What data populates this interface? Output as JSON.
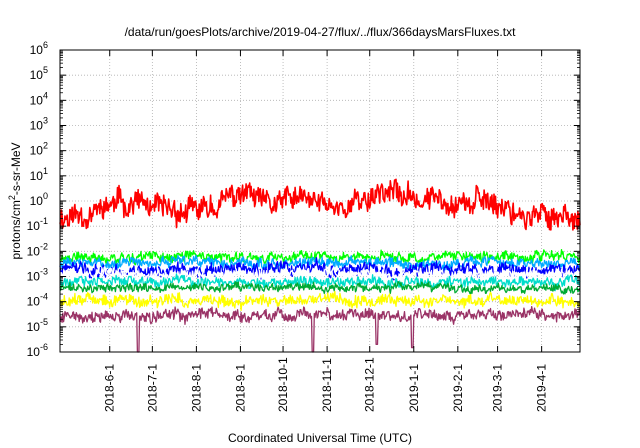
{
  "chart_data": {
    "type": "line",
    "title": "/data/run/goesPlots/archive/2019-04-27/flux/../flux/366daysMarsFluxes.txt",
    "xlabel": "Coordinated Universal Time (UTC)",
    "ylabel_parts": [
      "protons/cm",
      "2",
      "-s-sr-MeV"
    ],
    "yscale": "log",
    "ylim_exp": [
      -6,
      6
    ],
    "yticks": [
      {
        "base": "10",
        "exp": "-6",
        "value": 1e-06
      },
      {
        "base": "10",
        "exp": "-5",
        "value": 1e-05
      },
      {
        "base": "10",
        "exp": "-4",
        "value": 0.0001
      },
      {
        "base": "10",
        "exp": "-3",
        "value": 0.001
      },
      {
        "base": "10",
        "exp": "-2",
        "value": 0.01
      },
      {
        "base": "10",
        "exp": "-1",
        "value": 0.1
      },
      {
        "base": "10",
        "exp": "0",
        "value": 1
      },
      {
        "base": "10",
        "exp": "1",
        "value": 10
      },
      {
        "base": "10",
        "exp": "2",
        "value": 100
      },
      {
        "base": "10",
        "exp": "3",
        "value": 1000
      },
      {
        "base": "10",
        "exp": "4",
        "value": 10000
      },
      {
        "base": "10",
        "exp": "5",
        "value": 100000
      },
      {
        "base": "10",
        "exp": "6",
        "value": 1000000
      }
    ],
    "xlim": [
      "2018-04-27",
      "2019-04-28"
    ],
    "xticks": [
      "2018-6-1",
      "2018-7-1",
      "2018-8-1",
      "2018-9-1",
      "2018-10-1",
      "2018-11-1",
      "2018-12-1",
      "2019-1-1",
      "2019-2-1",
      "2019-3-1",
      "2019-4-1"
    ],
    "grid": true,
    "legend": "none",
    "series": [
      {
        "color": "#ff0000",
        "level": 0.5,
        "spread": 0.35,
        "seed": 11,
        "knots": [
          [
            "2018-04-27",
            0.25
          ],
          [
            "2018-05-20",
            0.35
          ],
          [
            "2018-06-05",
            0.8
          ],
          [
            "2018-06-20",
            1.0
          ],
          [
            "2018-07-01",
            0.4
          ],
          [
            "2018-07-20",
            0.35
          ],
          [
            "2018-08-05",
            0.4
          ],
          [
            "2018-08-20",
            1.0
          ],
          [
            "2018-09-05",
            2.0
          ],
          [
            "2018-09-20",
            0.6
          ],
          [
            "2018-10-10",
            1.2
          ],
          [
            "2018-10-25",
            0.8
          ],
          [
            "2018-11-10",
            0.6
          ],
          [
            "2018-11-25",
            1.0
          ],
          [
            "2018-12-10",
            3.0
          ],
          [
            "2018-12-25",
            1.5
          ],
          [
            "2019-01-10",
            1.0
          ],
          [
            "2019-01-25",
            1.5
          ],
          [
            "2019-02-10",
            0.8
          ],
          [
            "2019-02-25",
            1.0
          ],
          [
            "2019-03-10",
            0.5
          ],
          [
            "2019-03-25",
            0.2
          ],
          [
            "2019-04-10",
            0.3
          ],
          [
            "2019-04-28",
            0.25
          ]
        ]
      },
      {
        "color": "#00ff00",
        "level": 0.006,
        "spread": 0.15,
        "seed": 21
      },
      {
        "color": "#00aaff",
        "level": 0.0035,
        "spread": 0.15,
        "seed": 31
      },
      {
        "color": "#0000ff",
        "level": 0.0018,
        "spread": 0.2,
        "seed": 41
      },
      {
        "color": "#ffffff",
        "level": 0.0012,
        "spread": 0.15,
        "seed": 51
      },
      {
        "color": "#00ddcc",
        "level": 0.0006,
        "spread": 0.15,
        "seed": 61
      },
      {
        "color": "#00aa33",
        "level": 0.00035,
        "spread": 0.12,
        "seed": 71
      },
      {
        "color": "#ffff00",
        "level": 0.00011,
        "spread": 0.18,
        "seed": 81
      },
      {
        "color": "#9a3366",
        "level": 3e-05,
        "spread": 0.17,
        "seed": 91,
        "dips": [
          [
            "2018-06-21",
            1e-06
          ],
          [
            "2018-10-22",
            1e-06
          ],
          [
            "2018-12-06",
            2e-06
          ],
          [
            "2018-12-31",
            1.5e-06
          ]
        ]
      }
    ]
  }
}
